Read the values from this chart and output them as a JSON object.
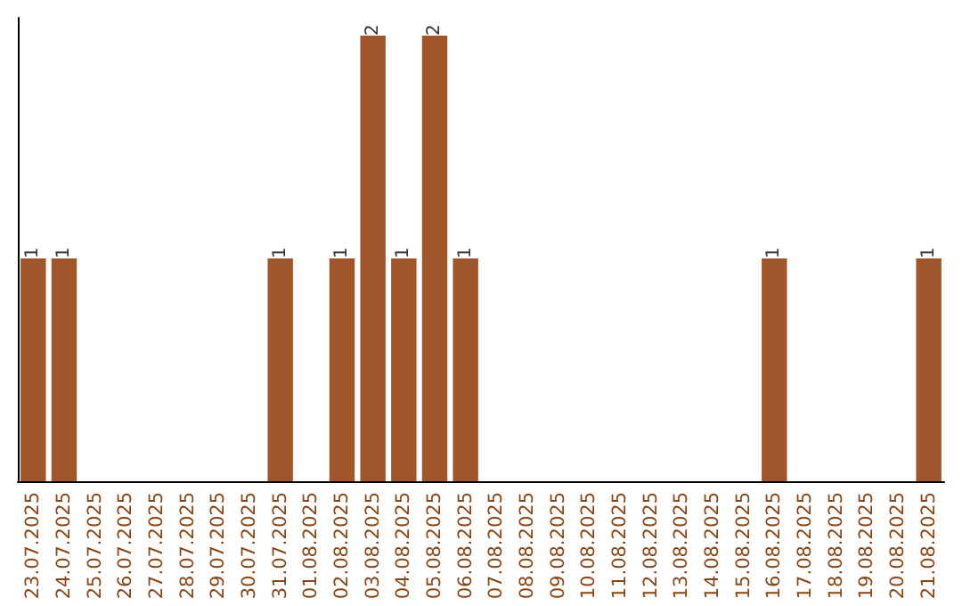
{
  "chart_data": {
    "type": "bar",
    "categories": [
      "23.07.2025",
      "24.07.2025",
      "25.07.2025",
      "26.07.2025",
      "27.07.2025",
      "28.07.2025",
      "29.07.2025",
      "30.07.2025",
      "31.07.2025",
      "01.08.2025",
      "02.08.2025",
      "03.08.2025",
      "04.08.2025",
      "05.08.2025",
      "06.08.2025",
      "07.08.2025",
      "08.08.2025",
      "09.08.2025",
      "10.08.2025",
      "11.08.2025",
      "12.08.2025",
      "13.08.2025",
      "14.08.2025",
      "15.08.2025",
      "16.08.2025",
      "17.08.2025",
      "18.08.2025",
      "19.08.2025",
      "20.08.2025",
      "21.08.2025"
    ],
    "values": [
      1,
      1,
      0,
      0,
      0,
      0,
      0,
      0,
      1,
      0,
      1,
      2,
      1,
      2,
      1,
      0,
      0,
      0,
      0,
      0,
      0,
      0,
      0,
      0,
      1,
      0,
      0,
      0,
      0,
      1
    ],
    "value_labels": [
      "1",
      "1",
      null,
      null,
      null,
      null,
      null,
      null,
      "1",
      null,
      "1",
      "2",
      "1",
      "2",
      "1",
      null,
      null,
      null,
      null,
      null,
      null,
      null,
      null,
      null,
      "1",
      null,
      null,
      null,
      null,
      "1"
    ],
    "color": "#a0562a",
    "ylim": [
      0,
      2.08
    ],
    "tick_labels": "x"
  }
}
